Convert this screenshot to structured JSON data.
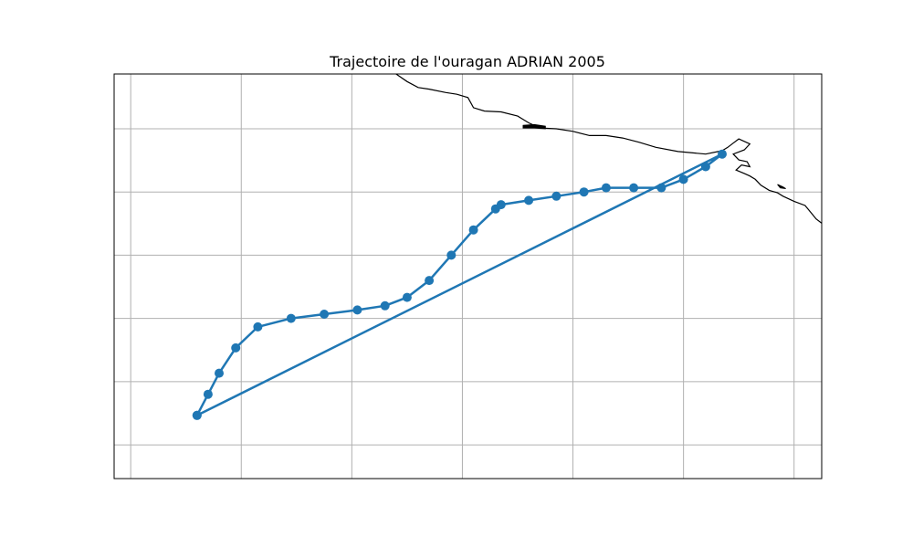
{
  "title": "Trajectoire de l'ouragan ADRIAN 2005",
  "colors": {
    "track": "#1f77b4",
    "coastline": "#000000",
    "grid": "#b0b0b0",
    "frame": "#000000",
    "background": "#ffffff"
  },
  "chart_data": {
    "type": "line",
    "projection": "map",
    "grid": true,
    "series": [
      {
        "points": [
          [
            -97.5,
            9.7
          ],
          [
            -97.3,
            10.2
          ],
          [
            -97.1,
            10.7
          ],
          [
            -96.8,
            11.3
          ],
          [
            -96.4,
            11.8
          ],
          [
            -95.8,
            12.0
          ],
          [
            -95.2,
            12.1
          ],
          [
            -94.6,
            12.2
          ],
          [
            -94.1,
            12.3
          ],
          [
            -93.7,
            12.5
          ],
          [
            -93.3,
            12.9
          ],
          [
            -92.9,
            13.5
          ],
          [
            -92.5,
            14.1
          ],
          [
            -92.1,
            14.6
          ],
          [
            -92.0,
            14.7
          ],
          [
            -91.5,
            14.8
          ],
          [
            -91.0,
            14.9
          ],
          [
            -90.5,
            15.0
          ],
          [
            -90.1,
            15.1
          ],
          [
            -89.6,
            15.1
          ],
          [
            -89.1,
            15.1
          ],
          [
            -88.7,
            15.3
          ],
          [
            -88.3,
            15.6
          ],
          [
            -88.0,
            15.9
          ],
          [
            -97.5,
            9.7
          ]
        ]
      }
    ]
  },
  "map": {
    "lon_range": [
      -99.0,
      -86.2
    ],
    "lat_range": [
      8.2,
      17.8
    ],
    "grid_lons": [
      -98.7,
      -96.7,
      -94.7,
      -92.7,
      -90.7,
      -88.7,
      -86.7
    ],
    "grid_lats": [
      9.0,
      10.5,
      12.0,
      13.5,
      15.0,
      16.5,
      18.0
    ],
    "coastlines": [
      [
        [
          -93.9,
          17.8
        ],
        [
          -93.7,
          17.62
        ],
        [
          -93.5,
          17.48
        ],
        [
          -93.3,
          17.44
        ],
        [
          -93.0,
          17.36
        ],
        [
          -92.8,
          17.32
        ],
        [
          -92.6,
          17.24
        ],
        [
          -92.5,
          17.0
        ],
        [
          -92.3,
          16.92
        ],
        [
          -92.0,
          16.9
        ],
        [
          -91.7,
          16.8
        ],
        [
          -91.5,
          16.64
        ],
        [
          -91.3,
          16.52
        ],
        [
          -91.0,
          16.5
        ],
        [
          -90.7,
          16.44
        ],
        [
          -90.4,
          16.34
        ],
        [
          -90.1,
          16.34
        ],
        [
          -89.8,
          16.28
        ],
        [
          -89.5,
          16.18
        ],
        [
          -89.2,
          16.06
        ],
        [
          -88.8,
          15.96
        ],
        [
          -88.3,
          15.9
        ],
        [
          -88.0,
          15.98
        ]
      ],
      [
        [
          -88.0,
          15.98
        ],
        [
          -87.9,
          16.06
        ],
        [
          -87.8,
          16.16
        ],
        [
          -87.7,
          16.26
        ],
        [
          -87.6,
          16.2
        ],
        [
          -87.5,
          16.14
        ],
        [
          -87.6,
          16.0
        ],
        [
          -87.8,
          15.9
        ],
        [
          -87.7,
          15.76
        ],
        [
          -87.55,
          15.72
        ],
        [
          -87.5,
          15.6
        ],
        [
          -87.65,
          15.64
        ],
        [
          -87.75,
          15.52
        ],
        [
          -87.6,
          15.44
        ],
        [
          -87.5,
          15.38
        ],
        [
          -87.4,
          15.3
        ],
        [
          -87.3,
          15.16
        ],
        [
          -87.15,
          15.04
        ],
        [
          -87.0,
          14.98
        ],
        [
          -86.9,
          14.9
        ],
        [
          -86.7,
          14.78
        ],
        [
          -86.5,
          14.68
        ],
        [
          -86.4,
          14.52
        ],
        [
          -86.3,
          14.36
        ],
        [
          -86.2,
          14.26
        ]
      ]
    ],
    "lagoons": [
      [
        [
          -91.6,
          16.58
        ],
        [
          -91.4,
          16.6
        ],
        [
          -91.2,
          16.56
        ],
        [
          -91.2,
          16.5
        ],
        [
          -91.4,
          16.52
        ],
        [
          -91.6,
          16.52
        ],
        [
          -91.6,
          16.58
        ]
      ],
      [
        [
          -87.0,
          15.18
        ],
        [
          -86.9,
          15.12
        ],
        [
          -86.85,
          15.08
        ],
        [
          -86.95,
          15.1
        ],
        [
          -87.0,
          15.18
        ]
      ]
    ]
  }
}
